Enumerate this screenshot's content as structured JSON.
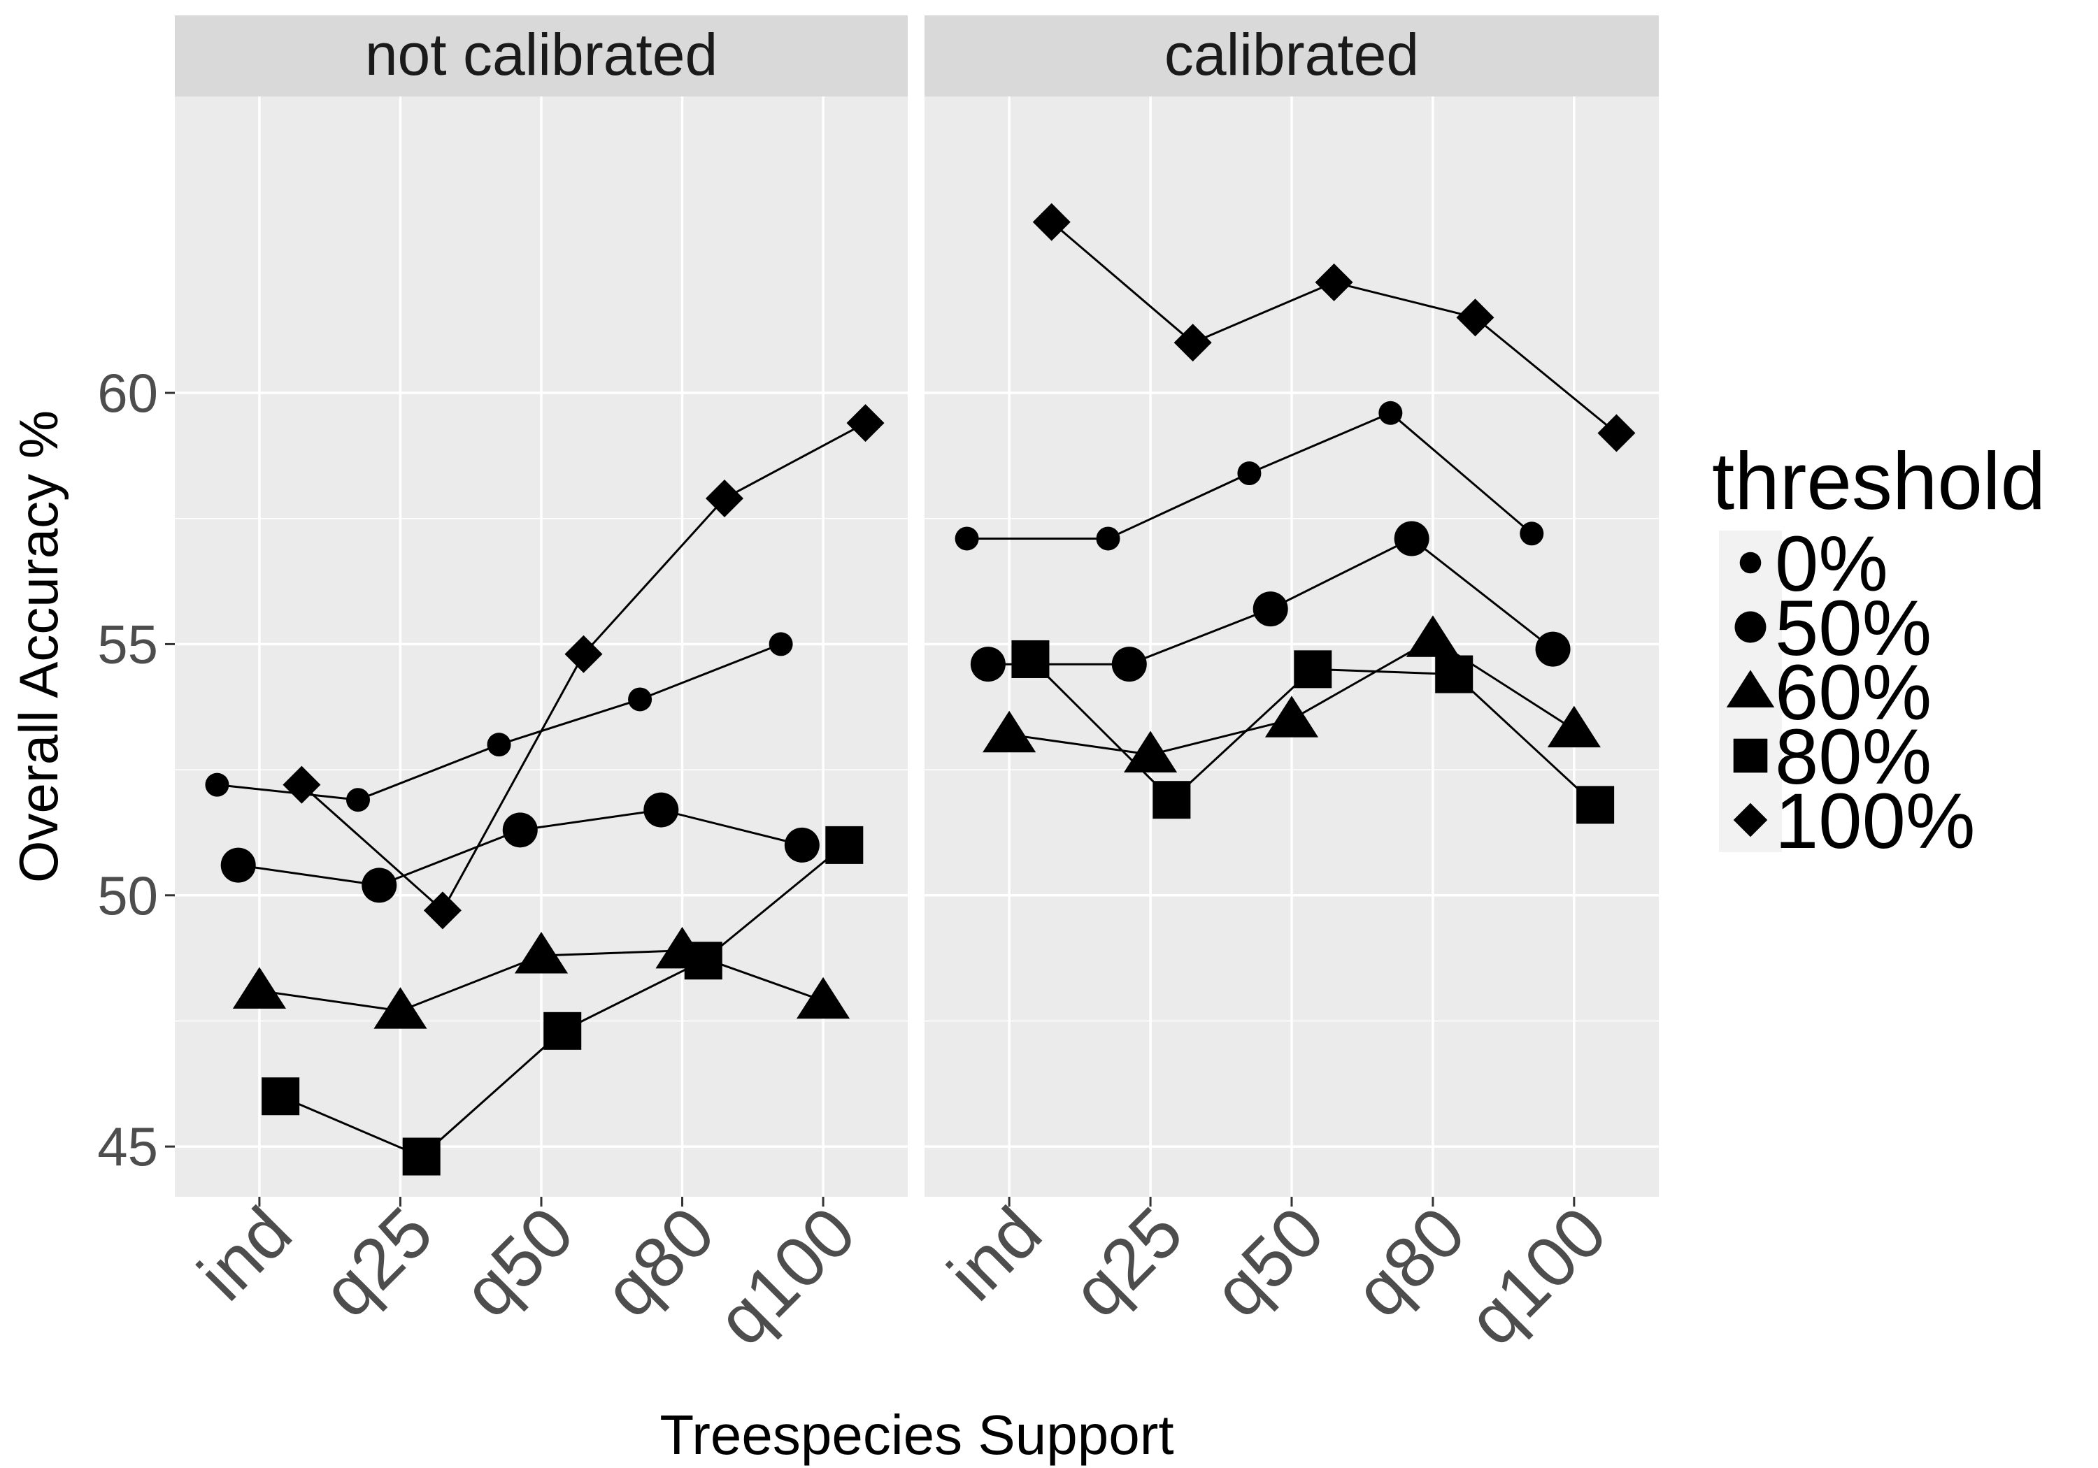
{
  "chart_data": {
    "type": "scatter",
    "ylabel": "Overall Accuracy %",
    "xlabel": "Treespecies Support",
    "categories": [
      "ind",
      "q25",
      "q50",
      "q80",
      "q100"
    ],
    "y_ticks": [
      45,
      50,
      55,
      60
    ],
    "ylim": [
      44.0,
      65.9
    ],
    "grid": true,
    "legend": {
      "title": "threshold",
      "placement": "right",
      "entries": [
        "0%",
        "50%",
        "60%",
        "80%",
        "100%"
      ]
    },
    "panels": [
      {
        "title": "not calibrated",
        "series": [
          {
            "name": "0%",
            "shape": "small-circle",
            "offset": -0.3,
            "values": [
              52.2,
              51.9,
              53.0,
              53.9,
              55.0
            ]
          },
          {
            "name": "50%",
            "shape": "circle",
            "offset": -0.15,
            "values": [
              50.6,
              50.2,
              51.3,
              51.7,
              51.0
            ]
          },
          {
            "name": "60%",
            "shape": "triangle",
            "offset": 0.0,
            "values": [
              48.1,
              47.7,
              48.8,
              48.9,
              47.9
            ]
          },
          {
            "name": "80%",
            "shape": "square",
            "offset": 0.15,
            "values": [
              46.0,
              44.8,
              47.3,
              48.7,
              51.0
            ]
          },
          {
            "name": "100%",
            "shape": "diamond",
            "offset": 0.3,
            "values": [
              52.2,
              49.7,
              54.8,
              57.9,
              59.4
            ]
          }
        ]
      },
      {
        "title": "calibrated",
        "series": [
          {
            "name": "0%",
            "shape": "small-circle",
            "offset": -0.3,
            "values": [
              57.1,
              57.1,
              58.4,
              59.6,
              57.2
            ]
          },
          {
            "name": "50%",
            "shape": "circle",
            "offset": -0.15,
            "values": [
              54.6,
              54.6,
              55.7,
              57.1,
              54.9
            ]
          },
          {
            "name": "60%",
            "shape": "triangle",
            "offset": 0.0,
            "values": [
              53.2,
              52.8,
              53.5,
              55.1,
              53.3
            ]
          },
          {
            "name": "80%",
            "shape": "square",
            "offset": 0.15,
            "values": [
              54.7,
              51.9,
              54.5,
              54.4,
              51.8
            ]
          },
          {
            "name": "100%",
            "shape": "diamond",
            "offset": 0.3,
            "values": [
              63.4,
              61.0,
              62.2,
              61.5,
              59.2
            ]
          }
        ]
      }
    ]
  }
}
